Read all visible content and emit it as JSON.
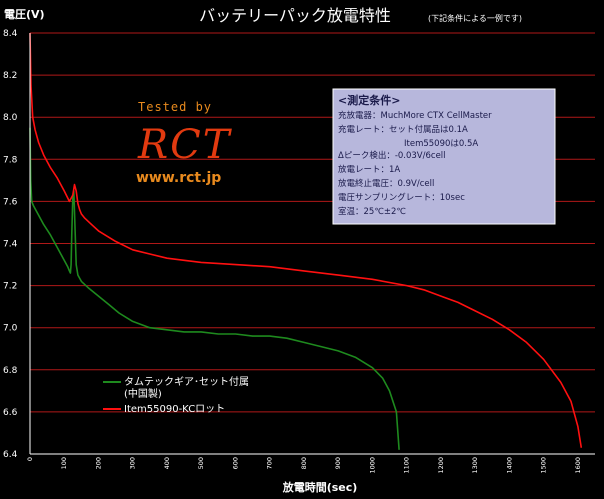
{
  "chart_data": {
    "type": "line",
    "title": "バッテリーパック放電特性",
    "note": "(下記条件による一例です)",
    "ylabel": "電圧(V)",
    "xlabel": "放電時間(sec)",
    "ylim": [
      6.4,
      8.4
    ],
    "xlim": [
      0,
      1650
    ],
    "yticks": [
      "8.4",
      "8.2",
      "8.0",
      "7.8",
      "7.6",
      "7.4",
      "7.2",
      "7.0",
      "6.8",
      "6.6",
      "6.4"
    ],
    "xticks": [
      "0",
      "100",
      "200",
      "300",
      "400",
      "500",
      "600",
      "700",
      "800",
      "900",
      "1000",
      "1100",
      "1200",
      "1300",
      "1400",
      "1500",
      "1600"
    ],
    "grid": "horizontal",
    "legend_position": "bottom-left",
    "series": [
      {
        "name": "タムテックギア･セット付属\n(中国製)",
        "color": "#1e8a1e",
        "x": [
          0,
          2,
          5,
          10,
          20,
          40,
          60,
          80,
          100,
          110,
          115,
          118,
          120,
          122,
          125,
          128,
          130,
          135,
          140,
          150,
          170,
          200,
          230,
          260,
          300,
          350,
          400,
          450,
          500,
          550,
          600,
          650,
          700,
          750,
          800,
          850,
          900,
          950,
          1000,
          1030,
          1050,
          1070,
          1078
        ],
        "y": [
          7.95,
          7.7,
          7.6,
          7.58,
          7.55,
          7.49,
          7.44,
          7.38,
          7.32,
          7.29,
          7.27,
          7.26,
          7.3,
          7.45,
          7.62,
          7.65,
          7.55,
          7.3,
          7.25,
          7.22,
          7.19,
          7.15,
          7.11,
          7.07,
          7.03,
          7.0,
          6.99,
          6.98,
          6.98,
          6.97,
          6.97,
          6.96,
          6.96,
          6.95,
          6.93,
          6.91,
          6.89,
          6.86,
          6.81,
          6.76,
          6.7,
          6.6,
          6.42
        ]
      },
      {
        "name": "Item55090-KCロット",
        "color": "#ff1010",
        "x": [
          0,
          3,
          8,
          15,
          25,
          40,
          60,
          80,
          100,
          115,
          125,
          130,
          135,
          140,
          145,
          150,
          160,
          180,
          200,
          250,
          300,
          350,
          400,
          500,
          600,
          700,
          800,
          900,
          1000,
          1100,
          1150,
          1200,
          1250,
          1300,
          1350,
          1400,
          1450,
          1500,
          1550,
          1580,
          1600,
          1610
        ],
        "y": [
          8.4,
          8.15,
          8.0,
          7.94,
          7.88,
          7.82,
          7.76,
          7.71,
          7.65,
          7.6,
          7.63,
          7.68,
          7.65,
          7.59,
          7.56,
          7.54,
          7.52,
          7.49,
          7.46,
          7.41,
          7.37,
          7.35,
          7.33,
          7.31,
          7.3,
          7.29,
          7.27,
          7.25,
          7.23,
          7.2,
          7.18,
          7.15,
          7.12,
          7.08,
          7.04,
          6.99,
          6.93,
          6.85,
          6.74,
          6.65,
          6.53,
          6.43
        ]
      }
    ]
  },
  "watermark": {
    "tested_by": "Tested by",
    "logo": "RCT",
    "url": "www.rct.jp"
  },
  "conditions": {
    "heading": "<測定条件>",
    "lines": [
      "充放電器：MuchMore CTX CellMaster",
      "充電レート：セット付属品は0.1A",
      "Item55090は0.5A",
      "Δピーク検出：-0.03V/6cell",
      "放電レート：1A",
      "放電終止電圧：0.9V/cell",
      "電圧サンプリングレート：10sec",
      "室温：25℃±2℃"
    ]
  },
  "colors": {
    "background": "#000000",
    "grid": "#b01818",
    "axis": "#ffffff",
    "conditions_bg": "#b7b7dc",
    "conditions_text": "#1a1a4a",
    "watermark": "#e88a1e"
  }
}
